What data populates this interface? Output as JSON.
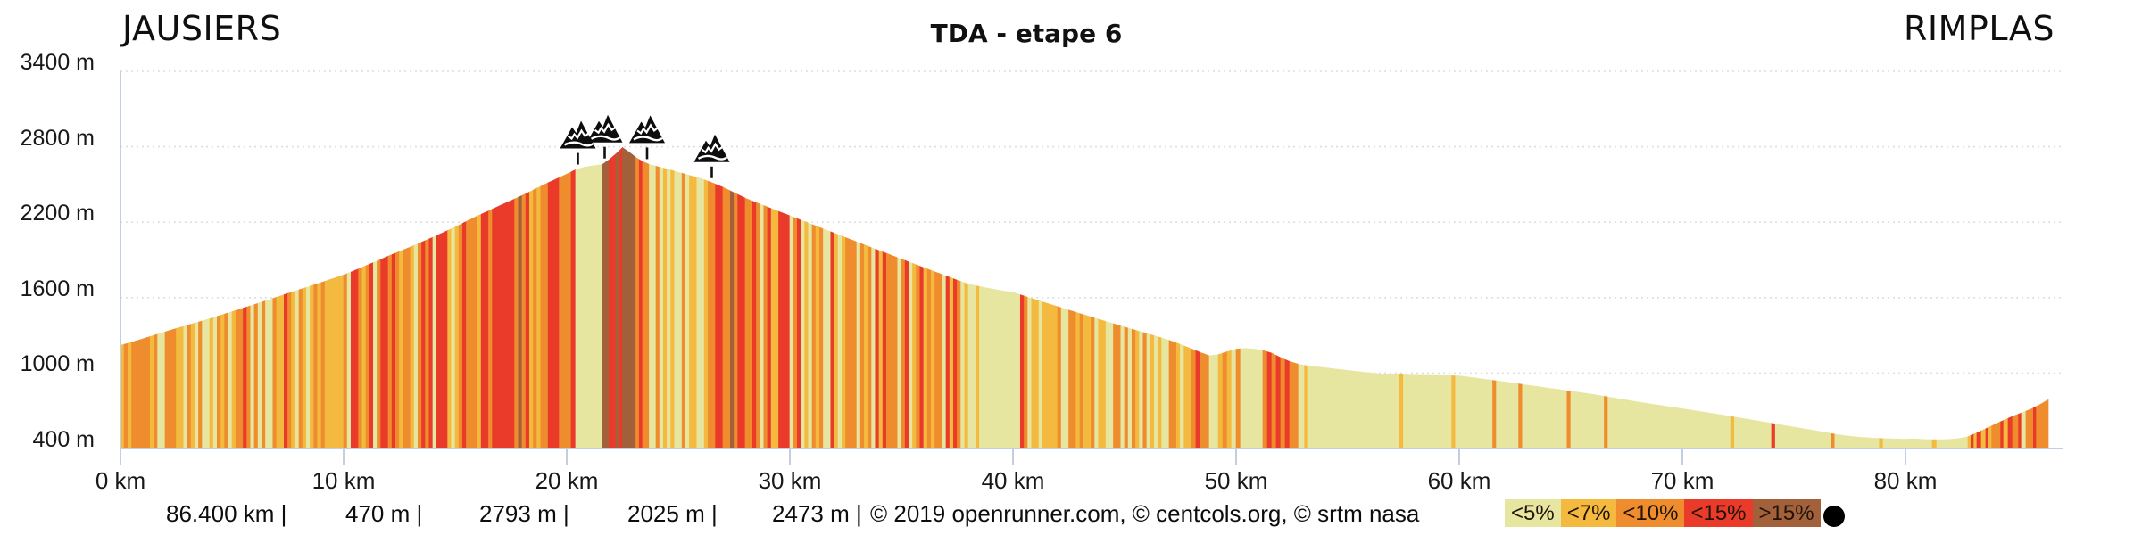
{
  "header": {
    "start_location": "JAUSIERS",
    "stage_title": "TDA - etape 6",
    "end_location": "RIMPLAS"
  },
  "y_axis": {
    "unit": "m",
    "labels": [
      "3400 m",
      "2800 m",
      "2200 m",
      "1600 m",
      "1000 m",
      "400 m"
    ]
  },
  "x_axis": {
    "unit": "km",
    "labels": [
      "0 km",
      "10 km",
      "20 km",
      "30 km",
      "40 km",
      "50 km",
      "60 km",
      "70 km",
      "80 km"
    ]
  },
  "footer": {
    "stats": [
      "86.400 km |",
      "470 m |",
      "2793 m |",
      "2025 m |",
      "2473 m |"
    ],
    "credits": "© 2019 openrunner.com, © centcols.org, © srtm nasa"
  },
  "legend": {
    "items": [
      {
        "label": "<5%",
        "color": "#e7e6a0"
      },
      {
        "label": "<7%",
        "color": "#f4ba3f"
      },
      {
        "label": "<10%",
        "color": "#ef8d2e"
      },
      {
        "label": "<15%",
        "color": "#e93a2a"
      },
      {
        "label": ">15%",
        "color": "#a2613b"
      }
    ],
    "marker_color": "#000000"
  },
  "chart_data": {
    "type": "area",
    "title": "TDA - etape 6",
    "start_label": "JAUSIERS",
    "end_label": "RIMPLAS",
    "x_unit": "km",
    "y_unit": "m",
    "xlim": [
      0,
      86.4
    ],
    "ylim": [
      400,
      3400
    ],
    "x_ticks_km": [
      0,
      10,
      20,
      30,
      40,
      50,
      60,
      70,
      80
    ],
    "y_ticks_m": [
      3400,
      2800,
      2200,
      1600,
      1000,
      400
    ],
    "grid": "dotted-horizontal",
    "stats": {
      "distance": "86.400 km",
      "min_elevation_m": 470,
      "max_elevation_m": 2793,
      "total_ascent_m": 2025,
      "total_descent_m": 2473
    },
    "gradient_buckets": [
      {
        "label": "<5%",
        "max_percent": 5,
        "color": "#e7e6a0"
      },
      {
        "label": "<7%",
        "max_percent": 7,
        "color": "#f4ba3f"
      },
      {
        "label": "<10%",
        "max_percent": 10,
        "color": "#ef8d2e"
      },
      {
        "label": "<15%",
        "max_percent": 15,
        "color": "#e93a2a"
      },
      {
        "label": ">15%",
        "max_percent": null,
        "color": "#a2613b"
      }
    ],
    "summit_markers_km": [
      20.5,
      21.7,
      23.6,
      26.5
    ],
    "axis_color": "#c3cee2",
    "gridline_color": "#dedede",
    "profile_km_elev": [
      [
        0,
        1220
      ],
      [
        0.5,
        1245
      ],
      [
        1,
        1272
      ],
      [
        1.5,
        1300
      ],
      [
        2,
        1327
      ],
      [
        2.5,
        1354
      ],
      [
        3,
        1380
      ],
      [
        3.5,
        1406
      ],
      [
        4,
        1432
      ],
      [
        4.5,
        1460
      ],
      [
        5,
        1488
      ],
      [
        5.5,
        1516
      ],
      [
        6,
        1545
      ],
      [
        6.5,
        1574
      ],
      [
        7,
        1603
      ],
      [
        7.5,
        1633
      ],
      [
        8,
        1662
      ],
      [
        8.5,
        1691
      ],
      [
        9,
        1720
      ],
      [
        9.5,
        1750
      ],
      [
        10,
        1780
      ],
      [
        10.5,
        1816
      ],
      [
        11,
        1853
      ],
      [
        11.5,
        1891
      ],
      [
        12,
        1930
      ],
      [
        12.5,
        1966
      ],
      [
        13,
        2003
      ],
      [
        13.5,
        2041
      ],
      [
        14,
        2080
      ],
      [
        14.5,
        2120
      ],
      [
        15,
        2161
      ],
      [
        15.5,
        2205
      ],
      [
        16,
        2250
      ],
      [
        16.5,
        2290
      ],
      [
        17,
        2331
      ],
      [
        17.5,
        2371
      ],
      [
        18,
        2412
      ],
      [
        18.5,
        2455
      ],
      [
        19,
        2500
      ],
      [
        19.5,
        2541
      ],
      [
        20,
        2582
      ],
      [
        20.4,
        2618
      ],
      [
        20.8,
        2638
      ],
      [
        21.2,
        2649
      ],
      [
        21.6,
        2659
      ],
      [
        21.9,
        2697
      ],
      [
        22.2,
        2742
      ],
      [
        22.5,
        2793
      ],
      [
        22.8,
        2757
      ],
      [
        23.1,
        2714
      ],
      [
        23.4,
        2682
      ],
      [
        23.7,
        2659
      ],
      [
        24,
        2645
      ],
      [
        24.5,
        2622
      ],
      [
        25,
        2597
      ],
      [
        25.5,
        2572
      ],
      [
        26,
        2548
      ],
      [
        26.5,
        2515
      ],
      [
        27,
        2478
      ],
      [
        27.5,
        2434
      ],
      [
        28,
        2391
      ],
      [
        28.5,
        2355
      ],
      [
        29,
        2320
      ],
      [
        29.5,
        2285
      ],
      [
        30,
        2251
      ],
      [
        30.5,
        2216
      ],
      [
        31,
        2181
      ],
      [
        31.5,
        2146
      ],
      [
        32,
        2112
      ],
      [
        32.5,
        2077
      ],
      [
        33,
        2043
      ],
      [
        33.5,
        2008
      ],
      [
        34,
        1974
      ],
      [
        34.5,
        1940
      ],
      [
        35,
        1906
      ],
      [
        35.5,
        1872
      ],
      [
        36,
        1838
      ],
      [
        36.5,
        1805
      ],
      [
        37,
        1772
      ],
      [
        37.5,
        1739
      ],
      [
        38,
        1707
      ],
      [
        38.5,
        1688
      ],
      [
        39,
        1671
      ],
      [
        39.5,
        1655
      ],
      [
        40,
        1641
      ],
      [
        41,
        1584
      ],
      [
        42,
        1528
      ],
      [
        43,
        1473
      ],
      [
        44,
        1419
      ],
      [
        45,
        1366
      ],
      [
        46,
        1314
      ],
      [
        46.5,
        1288
      ],
      [
        47,
        1260
      ],
      [
        47.5,
        1228
      ],
      [
        48,
        1192
      ],
      [
        48.4,
        1163
      ],
      [
        48.8,
        1138
      ],
      [
        49.2,
        1146
      ],
      [
        49.6,
        1170
      ],
      [
        50,
        1190
      ],
      [
        50.4,
        1196
      ],
      [
        50.8,
        1191
      ],
      [
        51.2,
        1180
      ],
      [
        51.6,
        1158
      ],
      [
        52,
        1122
      ],
      [
        52.4,
        1092
      ],
      [
        52.8,
        1070
      ],
      [
        53.2,
        1057
      ],
      [
        54,
        1042
      ],
      [
        54.5,
        1031
      ],
      [
        55,
        1021
      ],
      [
        55.5,
        1011
      ],
      [
        56,
        1001
      ],
      [
        56.5,
        993
      ],
      [
        57,
        988
      ],
      [
        57.5,
        985
      ],
      [
        58,
        983
      ],
      [
        58.5,
        981
      ],
      [
        59,
        980
      ],
      [
        59.5,
        979
      ],
      [
        60,
        977
      ],
      [
        60.5,
        966
      ],
      [
        61,
        954
      ],
      [
        61.5,
        942
      ],
      [
        62,
        930
      ],
      [
        62.5,
        918
      ],
      [
        63,
        905
      ],
      [
        63.5,
        893
      ],
      [
        64,
        880
      ],
      [
        64.5,
        868
      ],
      [
        65,
        855
      ],
      [
        65.5,
        843
      ],
      [
        66,
        830
      ],
      [
        66.5,
        815
      ],
      [
        67,
        800
      ],
      [
        67.5,
        785
      ],
      [
        68,
        770
      ],
      [
        68.5,
        756
      ],
      [
        69,
        743
      ],
      [
        69.5,
        729
      ],
      [
        70,
        716
      ],
      [
        70.5,
        702
      ],
      [
        71,
        688
      ],
      [
        71.5,
        674
      ],
      [
        72,
        660
      ],
      [
        72.5,
        645
      ],
      [
        73,
        630
      ],
      [
        73.5,
        615
      ],
      [
        74,
        600
      ],
      [
        74.5,
        585
      ],
      [
        75,
        570
      ],
      [
        75.5,
        555
      ],
      [
        76,
        540
      ],
      [
        76.5,
        524
      ],
      [
        77,
        509
      ],
      [
        77.5,
        497
      ],
      [
        78,
        489
      ],
      [
        78.5,
        483
      ],
      [
        79,
        479
      ],
      [
        79.5,
        476
      ],
      [
        80,
        474
      ],
      [
        80.4,
        477
      ],
      [
        80.8,
        472
      ],
      [
        81.2,
        470
      ],
      [
        81.6,
        470
      ],
      [
        82,
        473
      ],
      [
        82.4,
        479
      ],
      [
        82.8,
        494
      ],
      [
        83.2,
        524
      ],
      [
        83.6,
        557
      ],
      [
        84,
        591
      ],
      [
        84.4,
        624
      ],
      [
        84.8,
        655
      ],
      [
        85.2,
        683
      ],
      [
        85.6,
        711
      ],
      [
        86,
        746
      ],
      [
        86.4,
        788
      ]
    ]
  }
}
